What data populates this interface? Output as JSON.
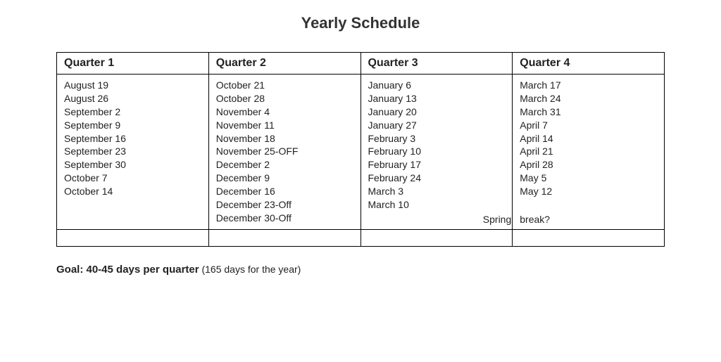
{
  "title": "Yearly Schedule",
  "columns": [
    "Quarter 1",
    "Quarter 2",
    "Quarter 3",
    "Quarter 4"
  ],
  "rows": [
    [
      "August 19",
      "August 26",
      "September 2",
      "September 9",
      "September 16",
      "September 23",
      "September 30",
      "October 7",
      "October 14"
    ],
    [
      "October 21",
      "October 28",
      "November 4",
      "November 11",
      "November 18",
      "November 25-OFF",
      "December 2",
      "December 9",
      "December 16",
      "December 23-Off",
      "December 30-Off"
    ],
    [
      "January 6",
      "January 13",
      "January 20",
      "January 27",
      "February 3",
      "February 10",
      "February 17",
      "February 24",
      "March 3",
      "March 10"
    ],
    [
      "March 17",
      "March 24",
      "March 31",
      "April 7",
      "April 14",
      "April 21",
      "April 28",
      "May 5",
      "May 12"
    ]
  ],
  "spring_note_left": "Spring",
  "spring_note_right": "break?",
  "goal_strong": "Goal: 40-45 days per quarter",
  "goal_rest": " (165 days for the year)",
  "table": {
    "border_color": "#000000",
    "background_color": "#ffffff",
    "header_fontsize": 16,
    "cell_fontsize": 14,
    "title_fontsize": 22,
    "text_color": "#222222"
  }
}
